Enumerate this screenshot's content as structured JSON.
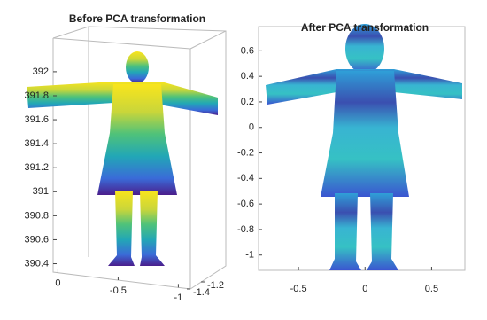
{
  "chart_data": [
    {
      "type": "scatter",
      "title": "Before PCA transformation",
      "ylim": [
        390.33,
        392.28
      ],
      "yticks": [
        390.4,
        390.6,
        390.8,
        391,
        391.2,
        391.4,
        391.6,
        391.8,
        392
      ],
      "xlim": [
        0.04,
        -1.1
      ],
      "xticks": [
        0,
        -0.5,
        -1
      ],
      "zticks": [
        -1.4,
        -1.2
      ]
    },
    {
      "type": "scatter",
      "title": "After PCA transformation",
      "ylim": [
        -1.12,
        0.79
      ],
      "yticks": [
        0.6,
        0.4,
        0.2,
        0,
        -0.2,
        -0.4,
        -0.6,
        -0.8,
        -1
      ],
      "xlim": [
        -0.8,
        0.75
      ],
      "xticks": [
        -0.5,
        0,
        0.5
      ]
    }
  ]
}
